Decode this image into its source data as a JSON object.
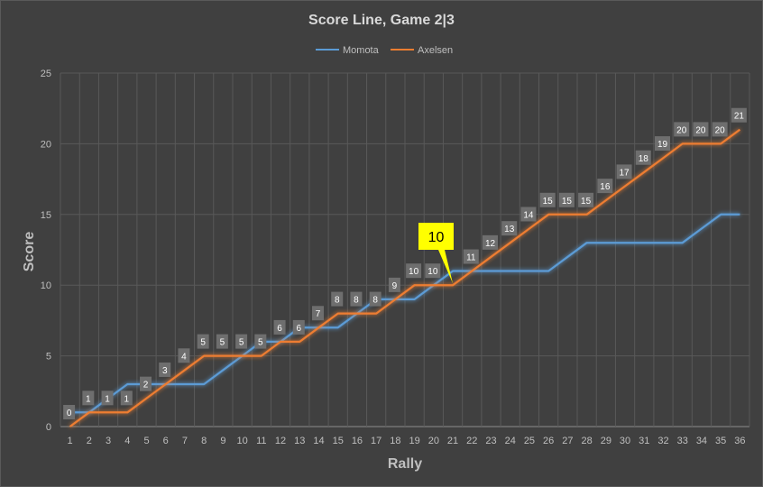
{
  "chart_data": {
    "type": "line",
    "title": "Score Line, Game 2|3",
    "xlabel": "Rally",
    "ylabel": "Score",
    "categories": [
      "1",
      "2",
      "3",
      "4",
      "5",
      "6",
      "7",
      "8",
      "9",
      "10",
      "11",
      "12",
      "13",
      "14",
      "15",
      "16",
      "17",
      "18",
      "19",
      "20",
      "21",
      "22",
      "23",
      "24",
      "25",
      "26",
      "27",
      "28",
      "29",
      "30",
      "31",
      "32",
      "33",
      "34",
      "35",
      "36"
    ],
    "ylim": [
      0,
      25
    ],
    "yticks": [
      0,
      5,
      10,
      15,
      20,
      25
    ],
    "grid": true,
    "legend_position": "top",
    "series": [
      {
        "name": "Momota",
        "color": "#5b9bd5",
        "values": [
          1,
          1,
          2,
          3,
          3,
          3,
          3,
          3,
          4,
          5,
          6,
          6,
          7,
          7,
          7,
          8,
          9,
          9,
          9,
          10,
          11,
          11,
          11,
          11,
          11,
          11,
          12,
          13,
          13,
          13,
          13,
          13,
          13,
          14,
          15,
          15
        ]
      },
      {
        "name": "Axelsen",
        "color": "#ed7d31",
        "values": [
          0,
          1,
          1,
          1,
          2,
          3,
          4,
          5,
          5,
          5,
          5,
          6,
          6,
          7,
          8,
          8,
          8,
          9,
          10,
          10,
          10,
          11,
          12,
          13,
          14,
          15,
          15,
          15,
          16,
          17,
          18,
          19,
          20,
          20,
          20,
          21
        ]
      }
    ],
    "data_labels": {
      "series": "Axelsen",
      "values": [
        "0",
        "1",
        "1",
        "1",
        "2",
        "3",
        "4",
        "5",
        "5",
        "5",
        "5",
        "6",
        "6",
        "7",
        "8",
        "8",
        "8",
        "9",
        "10",
        "10",
        "",
        "11",
        "12",
        "13",
        "14",
        "15",
        "15",
        "15",
        "16",
        "17",
        "18",
        "19",
        "20",
        "20",
        "20",
        "21"
      ]
    },
    "callout": {
      "text": "10",
      "category": "21",
      "background": "#ffff00"
    }
  }
}
